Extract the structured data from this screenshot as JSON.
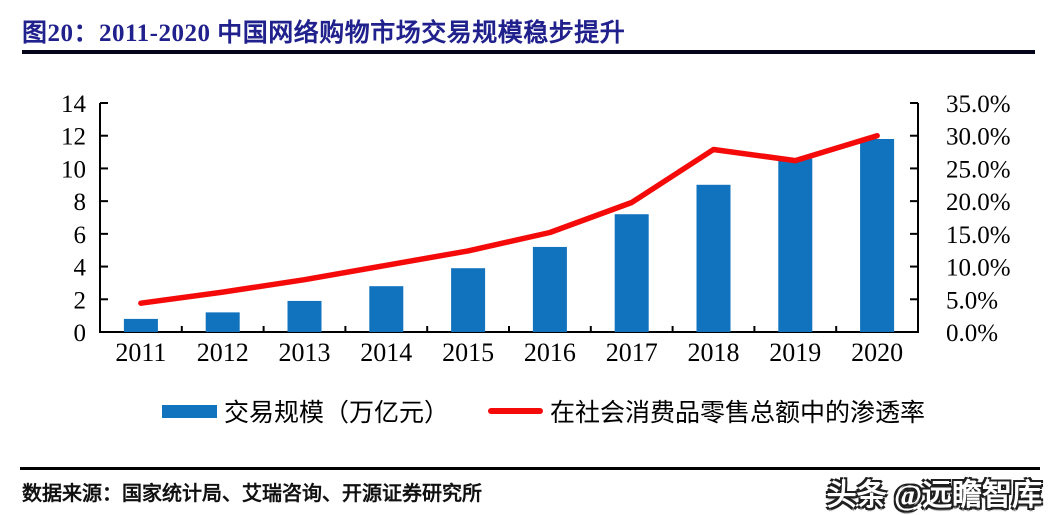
{
  "figure": {
    "title": "图20：2011-2020 中国网络购物市场交易规模稳步提升",
    "source": "数据来源：国家统计局、艾瑞咨询、开源证券研究所",
    "watermark": "头条 @远瞻智库"
  },
  "colors": {
    "bar": "#1173BD",
    "line": "#F50A0A",
    "title": "#21218D",
    "axis": "#000000",
    "rule": "#05051A"
  },
  "chart_data": {
    "type": "bar",
    "subtype": "bar-with-line-overlay",
    "title": "图20：2011-2020 中国网络购物市场交易规模稳步提升",
    "categories": [
      "2011",
      "2012",
      "2013",
      "2014",
      "2015",
      "2016",
      "2017",
      "2018",
      "2019",
      "2020"
    ],
    "series": [
      {
        "name": "交易规模（万亿元）",
        "type": "bar",
        "axis": "left",
        "values": [
          0.8,
          1.2,
          1.9,
          2.8,
          3.9,
          5.2,
          7.2,
          9.0,
          10.6,
          11.8
        ]
      },
      {
        "name": "在社会消费品零售总额中的渗透率",
        "type": "line",
        "axis": "right",
        "unit": "%",
        "values": [
          4.4,
          6.1,
          8.0,
          10.2,
          12.4,
          15.2,
          19.8,
          27.9,
          26.2,
          30.0
        ]
      }
    ],
    "left_axis": {
      "min": 0,
      "max": 14,
      "tick_labels": [
        "0",
        "2",
        "4",
        "6",
        "8",
        "10",
        "12",
        "14"
      ]
    },
    "right_axis": {
      "min": 0,
      "max": 35,
      "tick_labels": [
        "0.0%",
        "5.0%",
        "10.0%",
        "15.0%",
        "20.0%",
        "25.0%",
        "30.0%",
        "35.0%"
      ]
    },
    "grid": false,
    "legend_position": "bottom"
  }
}
